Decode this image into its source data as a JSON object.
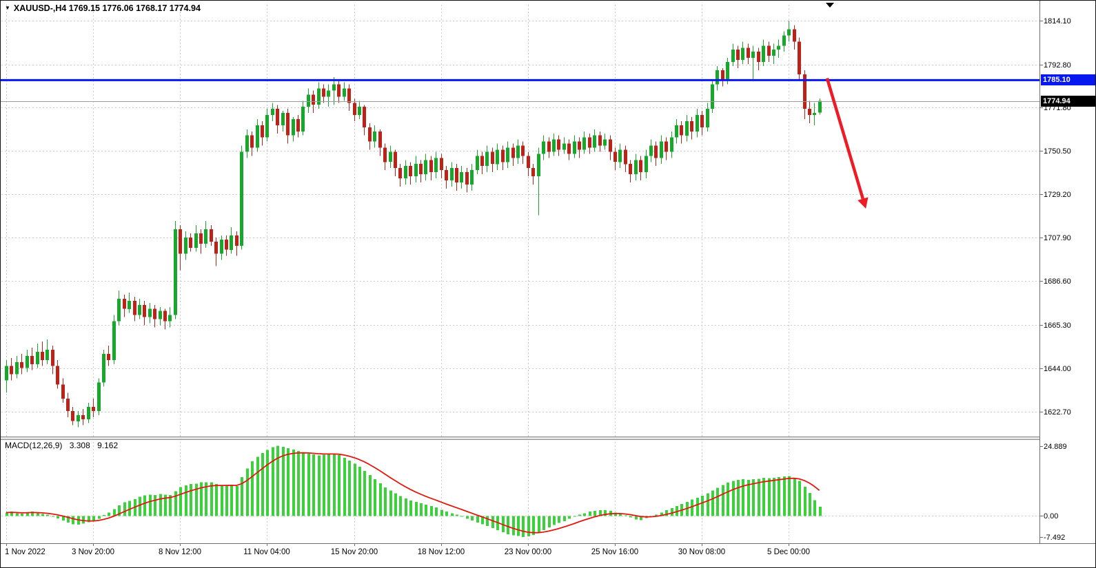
{
  "header": {
    "collapse_icon": "▼",
    "title": "XAUUSD-,H4 1769.15 1776.06 1768.17 1774.94"
  },
  "macd_panel": {
    "name": "MACD(12,26,9)",
    "main_value": "3.308",
    "signal_value": "9.162"
  },
  "price_tags": {
    "resistance": "1785.10",
    "current": "1774.94"
  },
  "chart_data": {
    "type": "candlestick",
    "symbol": "XAUUSD-",
    "timeframe": "H4",
    "title": "XAUUSD- H4 with MACD(12,26,9)",
    "last_ohlc": {
      "open": 1769.15,
      "high": 1776.06,
      "low": 1768.17,
      "close": 1774.94
    },
    "price_range": [
      1610.5,
      1822.0
    ],
    "y_axis": {
      "labels": [
        {
          "text": "1814.10",
          "value": 1814.1
        },
        {
          "text": "1792.80",
          "value": 1792.8
        },
        {
          "text": "1771.80",
          "value": 1771.8
        },
        {
          "text": "1750.50",
          "value": 1750.5
        },
        {
          "text": "1729.20",
          "value": 1729.2
        },
        {
          "text": "1707.90",
          "value": 1707.9
        },
        {
          "text": "1686.60",
          "value": 1686.6
        },
        {
          "text": "1665.30",
          "value": 1665.3
        },
        {
          "text": "1644.00",
          "value": 1644.0
        },
        {
          "text": "1622.70",
          "value": 1622.7
        }
      ]
    },
    "x_axis": {
      "labels": [
        {
          "text": "1 Nov 2022",
          "index": 0
        },
        {
          "text": "3 Nov 20:00",
          "index": 17
        },
        {
          "text": "8 Nov 12:00",
          "index": 34
        },
        {
          "text": "11 Nov 04:00",
          "index": 51
        },
        {
          "text": "15 Nov 20:00",
          "index": 68
        },
        {
          "text": "18 Nov 12:00",
          "index": 85
        },
        {
          "text": "23 Nov 00:00",
          "index": 102
        },
        {
          "text": "25 Nov 16:00",
          "index": 119
        },
        {
          "text": "30 Nov 08:00",
          "index": 136
        },
        {
          "text": "5 Dec 00:00",
          "index": 153
        }
      ]
    },
    "candles": [
      [
        1638,
        1648,
        1632,
        1645
      ],
      [
        1645,
        1649,
        1638,
        1641
      ],
      [
        1641,
        1650,
        1639,
        1647
      ],
      [
        1647,
        1651,
        1641,
        1644
      ],
      [
        1644,
        1653,
        1642,
        1650
      ],
      [
        1650,
        1654,
        1643,
        1646
      ],
      [
        1646,
        1656,
        1644,
        1652
      ],
      [
        1652,
        1657,
        1645,
        1648
      ],
      [
        1648,
        1658,
        1646,
        1653
      ],
      [
        1653,
        1655,
        1641,
        1645
      ],
      [
        1645,
        1648,
        1634,
        1636
      ],
      [
        1636,
        1639,
        1627,
        1629
      ],
      [
        1629,
        1632,
        1620,
        1623
      ],
      [
        1623,
        1625,
        1616,
        1618
      ],
      [
        1618,
        1623,
        1615,
        1621
      ],
      [
        1621,
        1624,
        1616,
        1619
      ],
      [
        1619,
        1627,
        1617,
        1625
      ],
      [
        1625,
        1629,
        1620,
        1623
      ],
      [
        1623,
        1639,
        1621,
        1637
      ],
      [
        1637,
        1653,
        1635,
        1651
      ],
      [
        1651,
        1655,
        1645,
        1648
      ],
      [
        1648,
        1670,
        1646,
        1667
      ],
      [
        1667,
        1682,
        1665,
        1678
      ],
      [
        1678,
        1680,
        1669,
        1673
      ],
      [
        1673,
        1681,
        1671,
        1677
      ],
      [
        1677,
        1679,
        1667,
        1670
      ],
      [
        1670,
        1678,
        1668,
        1675
      ],
      [
        1675,
        1677,
        1665,
        1669
      ],
      [
        1669,
        1676,
        1666,
        1673
      ],
      [
        1673,
        1675,
        1664,
        1668
      ],
      [
        1668,
        1674,
        1665,
        1672
      ],
      [
        1672,
        1673,
        1663,
        1667
      ],
      [
        1667,
        1674,
        1664,
        1670
      ],
      [
        1670,
        1716,
        1668,
        1712
      ],
      [
        1712,
        1714,
        1692,
        1700
      ],
      [
        1700,
        1711,
        1697,
        1708
      ],
      [
        1708,
        1710,
        1701,
        1703
      ],
      [
        1703,
        1714,
        1701,
        1710
      ],
      [
        1710,
        1712,
        1700,
        1705
      ],
      [
        1705,
        1716,
        1703,
        1712
      ],
      [
        1712,
        1714,
        1704,
        1706
      ],
      [
        1706,
        1708,
        1694,
        1700
      ],
      [
        1700,
        1709,
        1697,
        1707
      ],
      [
        1707,
        1709,
        1699,
        1702
      ],
      [
        1702,
        1713,
        1700,
        1709
      ],
      [
        1709,
        1711,
        1699,
        1704
      ],
      [
        1704,
        1753,
        1702,
        1750
      ],
      [
        1750,
        1761,
        1747,
        1758
      ],
      [
        1758,
        1760,
        1748,
        1752
      ],
      [
        1752,
        1766,
        1750,
        1763
      ],
      [
        1763,
        1765,
        1753,
        1757
      ],
      [
        1757,
        1771,
        1755,
        1768
      ],
      [
        1768,
        1774,
        1765,
        1771
      ],
      [
        1771,
        1773,
        1759,
        1763
      ],
      [
        1763,
        1770,
        1760,
        1769
      ],
      [
        1769,
        1771,
        1754,
        1758
      ],
      [
        1758,
        1767,
        1755,
        1766
      ],
      [
        1766,
        1768,
        1757,
        1760
      ],
      [
        1760,
        1775,
        1758,
        1772
      ],
      [
        1772,
        1781,
        1769,
        1778
      ],
      [
        1778,
        1780,
        1769,
        1773
      ],
      [
        1773,
        1784,
        1771,
        1781
      ],
      [
        1781,
        1783,
        1774,
        1777
      ],
      [
        1777,
        1783,
        1772,
        1780
      ],
      [
        1780,
        1786.5,
        1773,
        1783
      ],
      [
        1783,
        1785,
        1774,
        1777
      ],
      [
        1777,
        1784,
        1775,
        1781
      ],
      [
        1781,
        1783,
        1770,
        1774
      ],
      [
        1774,
        1776,
        1765,
        1768
      ],
      [
        1768,
        1775,
        1766,
        1772
      ],
      [
        1772,
        1773,
        1758,
        1762
      ],
      [
        1762,
        1764,
        1751,
        1755
      ],
      [
        1755,
        1763,
        1752,
        1760
      ],
      [
        1760,
        1761,
        1748,
        1752
      ],
      [
        1752,
        1754,
        1741,
        1745
      ],
      [
        1745,
        1753,
        1742,
        1750
      ],
      [
        1750,
        1751,
        1738,
        1742
      ],
      [
        1742,
        1744,
        1733,
        1737
      ],
      [
        1737,
        1746,
        1734,
        1743
      ],
      [
        1743,
        1745,
        1734,
        1738
      ],
      [
        1738,
        1748,
        1735,
        1744
      ],
      [
        1744,
        1746,
        1735,
        1739
      ],
      [
        1739,
        1749,
        1736,
        1746
      ],
      [
        1746,
        1748,
        1736,
        1740
      ],
      [
        1740,
        1750,
        1737,
        1747
      ],
      [
        1747,
        1749,
        1737,
        1741
      ],
      [
        1741,
        1743,
        1732,
        1736
      ],
      [
        1736,
        1745,
        1733,
        1742
      ],
      [
        1742,
        1744,
        1731,
        1735
      ],
      [
        1735,
        1743,
        1732,
        1740
      ],
      [
        1740,
        1742,
        1730,
        1734
      ],
      [
        1734,
        1744,
        1731,
        1741
      ],
      [
        1741,
        1751,
        1739,
        1748
      ],
      [
        1748,
        1750,
        1739,
        1743
      ],
      [
        1743,
        1753,
        1740,
        1750
      ],
      [
        1750,
        1752,
        1740,
        1744
      ],
      [
        1744,
        1754,
        1741,
        1751
      ],
      [
        1751,
        1753,
        1741,
        1745
      ],
      [
        1745,
        1755,
        1742,
        1752
      ],
      [
        1752,
        1754,
        1743,
        1747
      ],
      [
        1747,
        1756,
        1744,
        1753
      ],
      [
        1753,
        1755,
        1744,
        1748
      ],
      [
        1748,
        1750,
        1738,
        1742
      ],
      [
        1742,
        1744,
        1734,
        1738
      ],
      [
        1738,
        1752,
        1719,
        1749
      ],
      [
        1749,
        1758,
        1746,
        1755
      ],
      [
        1755,
        1757,
        1747,
        1750
      ],
      [
        1750,
        1759,
        1748,
        1756
      ],
      [
        1756,
        1758,
        1748,
        1751
      ],
      [
        1751,
        1757,
        1749,
        1754
      ],
      [
        1754,
        1756,
        1746,
        1749
      ],
      [
        1749,
        1758,
        1747,
        1755
      ],
      [
        1755,
        1757,
        1747,
        1751
      ],
      [
        1751,
        1760,
        1749,
        1757
      ],
      [
        1757,
        1759,
        1749,
        1752
      ],
      [
        1752,
        1761,
        1750,
        1758
      ],
      [
        1758,
        1760,
        1750,
        1753
      ],
      [
        1753,
        1759,
        1751,
        1756
      ],
      [
        1756,
        1758,
        1746,
        1750
      ],
      [
        1750,
        1752,
        1741,
        1745
      ],
      [
        1745,
        1754,
        1742,
        1751
      ],
      [
        1751,
        1753,
        1740,
        1744
      ],
      [
        1744,
        1746,
        1735,
        1739
      ],
      [
        1739,
        1749,
        1736,
        1746
      ],
      [
        1746,
        1748,
        1736,
        1740
      ],
      [
        1740,
        1751,
        1737,
        1748
      ],
      [
        1748,
        1756,
        1745,
        1753
      ],
      [
        1753,
        1755,
        1743,
        1747
      ],
      [
        1747,
        1758,
        1744,
        1755
      ],
      [
        1755,
        1757,
        1746,
        1750
      ],
      [
        1750,
        1760,
        1747,
        1757
      ],
      [
        1757,
        1766,
        1754,
        1763
      ],
      [
        1763,
        1765,
        1754,
        1758
      ],
      [
        1758,
        1768,
        1755,
        1765
      ],
      [
        1765,
        1767,
        1756,
        1760
      ],
      [
        1760,
        1771,
        1757,
        1768
      ],
      [
        1768,
        1770,
        1758,
        1762
      ],
      [
        1762,
        1774,
        1760,
        1771
      ],
      [
        1771,
        1785,
        1769,
        1783
      ],
      [
        1783,
        1792,
        1780,
        1790
      ],
      [
        1790,
        1791,
        1782,
        1785
      ],
      [
        1785,
        1796,
        1783,
        1794
      ],
      [
        1794,
        1803,
        1792,
        1800
      ],
      [
        1800,
        1802,
        1791,
        1795
      ],
      [
        1795,
        1804,
        1793,
        1801
      ],
      [
        1801,
        1803,
        1793,
        1796
      ],
      [
        1796,
        1802,
        1785,
        1799
      ],
      [
        1799,
        1801,
        1790,
        1794
      ],
      [
        1794,
        1805,
        1792,
        1802
      ],
      [
        1802,
        1804,
        1794,
        1797
      ],
      [
        1797,
        1803,
        1793,
        1800
      ],
      [
        1800,
        1805,
        1796,
        1802
      ],
      [
        1802,
        1809,
        1799,
        1807
      ],
      [
        1807,
        1814.3,
        1804,
        1810
      ],
      [
        1810,
        1812,
        1800,
        1804
      ],
      [
        1804,
        1806,
        1785,
        1788
      ],
      [
        1788,
        1790,
        1766,
        1771
      ],
      [
        1771,
        1775,
        1764,
        1768
      ],
      [
        1768,
        1774,
        1763,
        1769
      ],
      [
        1769.15,
        1776.06,
        1768.17,
        1774.94
      ]
    ],
    "macd": {
      "params": "12,26,9",
      "range": [
        -9.2,
        26.5
      ],
      "signal_period": 9,
      "last_main": 3.308,
      "last_signal": 9.162,
      "axis_labels": [
        {
          "text": "24.889",
          "value": 24.889
        },
        {
          "text": "0.00",
          "value": 0
        },
        {
          "text": "-7.492",
          "value": -7.492
        }
      ],
      "hist": [
        1.2,
        1.5,
        1.0,
        0.8,
        1.2,
        1.5,
        1.1,
        0.7,
        0.4,
        -0.3,
        -0.9,
        -1.6,
        -2.3,
        -2.9,
        -3.1,
        -2.7,
        -2.2,
        -1.9,
        -1.0,
        0.3,
        1.2,
        2.4,
        3.8,
        4.8,
        5.4,
        5.9,
        6.8,
        7.3,
        7.5,
        7.4,
        7.8,
        7.5,
        7.4,
        8.8,
        10.2,
        10.9,
        11.4,
        11.5,
        11.9,
        12.0,
        11.9,
        11.4,
        11.0,
        10.9,
        11.0,
        10.6,
        13.8,
        16.8,
        19.4,
        21.0,
        22.4,
        23.5,
        24.4,
        24.889,
        24.6,
        24.1,
        23.6,
        23.1,
        22.6,
        22.1,
        21.8,
        21.5,
        21.7,
        21.9,
        22.0,
        21.6,
        20.6,
        19.6,
        18.5,
        17.4,
        16.0,
        14.5,
        13.0,
        11.6,
        10.1,
        9.0,
        8.0,
        7.0,
        6.2,
        5.5,
        5.0,
        4.5,
        4.0,
        3.5,
        3.0,
        2.2,
        1.5,
        1.0,
        0.4,
        -0.3,
        -1.0,
        -1.6,
        -2.3,
        -2.9,
        -3.6,
        -4.3,
        -5.0,
        -5.8,
        -6.5,
        -6.9,
        -7.1,
        -7.492,
        -7.2,
        -6.7,
        -5.9,
        -5.0,
        -4.0,
        -3.2,
        -2.5,
        -1.8,
        -1.0,
        -0.3,
        0.5,
        1.0,
        1.5,
        1.8,
        2.0,
        2.0,
        1.8,
        1.2,
        0.8,
        0.2,
        -0.5,
        -1.2,
        -1.5,
        -0.8,
        -0.3,
        0.5,
        1.2,
        2.0,
        2.8,
        3.5,
        4.2,
        5.0,
        5.8,
        6.5,
        7.2,
        8.0,
        9.0,
        10.0,
        11.0,
        11.8,
        12.5,
        12.8,
        13.0,
        12.8,
        13.0,
        13.2,
        13.5,
        13.4,
        13.6,
        13.8,
        14.0,
        14.2,
        13.6,
        12.4,
        10.4,
        8.2,
        5.6,
        3.308
      ]
    },
    "overlays": {
      "hline_price": 1785.1,
      "current_price": 1774.94,
      "arrow": {
        "from_bar": 160.5,
        "from_price": 1786,
        "to_bar": 167.5,
        "to_price": 1727
      }
    },
    "colors": {
      "bull": "#17a82b",
      "bear": "#bb2218",
      "macd_hist": "#3bd13b",
      "macd_signal": "#e3170d",
      "hline": "#0717f0",
      "current_line": "#9c9c9c",
      "arrow": "#ed1c24",
      "grid": "#c9c9c9",
      "axis": "#6e6e6e",
      "text": "#000000"
    }
  }
}
